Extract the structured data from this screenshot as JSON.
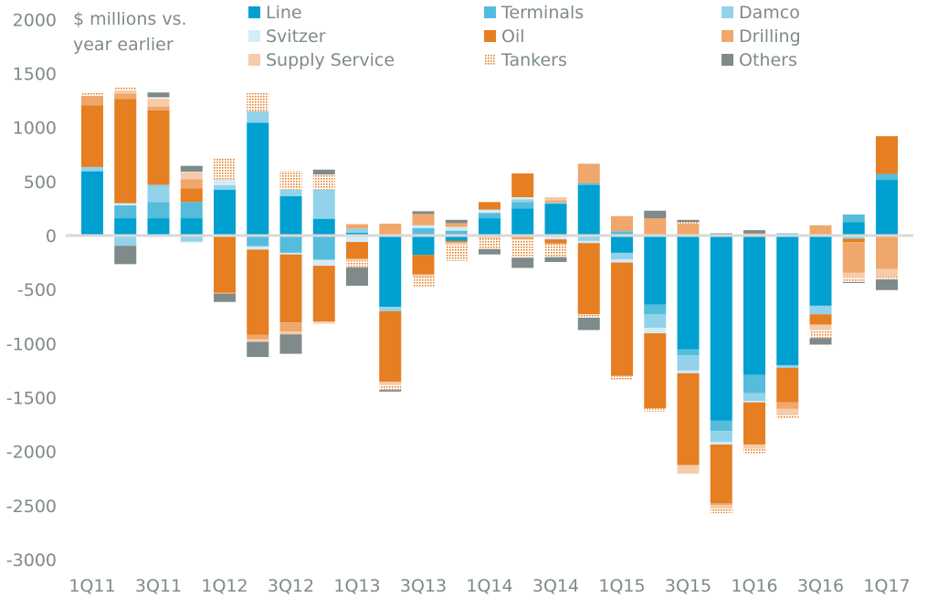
{
  "chart_data": {
    "type": "bar",
    "stacked": true,
    "title": "",
    "ylabel": "$ millions vs. year earlier",
    "xlabel": "",
    "ylim": [
      -3000,
      2000
    ],
    "yticks": [
      2000,
      1500,
      1000,
      500,
      0,
      -500,
      -1000,
      -1500,
      -2000,
      -2500,
      -3000
    ],
    "grid": false,
    "legend_position": "top",
    "categories": [
      "1Q11",
      "2Q11",
      "3Q11",
      "4Q11",
      "1Q12",
      "2Q12",
      "3Q12",
      "4Q12",
      "1Q13",
      "2Q13",
      "3Q13",
      "4Q13",
      "1Q14",
      "2Q14",
      "3Q14",
      "4Q14",
      "1Q15",
      "2Q15",
      "3Q15",
      "4Q15",
      "1Q16",
      "2Q16",
      "3Q16",
      "4Q16",
      "1Q17"
    ],
    "xtick_labels": [
      "1Q11",
      "3Q11",
      "1Q12",
      "3Q12",
      "1Q13",
      "3Q13",
      "1Q14",
      "3Q14",
      "1Q15",
      "3Q15",
      "1Q16",
      "3Q16",
      "1Q17"
    ],
    "series": [
      {
        "name": "Line",
        "color": "#00a0d0",
        "pattern": "solid",
        "values": [
          595,
          160,
          160,
          160,
          425,
          1045,
          365,
          155,
          25,
          -660,
          -180,
          -50,
          160,
          250,
          295,
          465,
          -160,
          -640,
          -1055,
          -1715,
          -1290,
          -1200,
          -650,
          125,
          515
        ]
      },
      {
        "name": "Terminals",
        "color": "#56bcdc",
        "pattern": "solid",
        "values": [
          0,
          120,
          150,
          150,
          0,
          -100,
          -160,
          -225,
          0,
          10,
          70,
          45,
          50,
          60,
          0,
          20,
          40,
          -90,
          -55,
          -95,
          -170,
          20,
          0,
          70,
          55
        ]
      },
      {
        "name": "Damco",
        "color": "#92d2ea",
        "pattern": "solid",
        "values": [
          40,
          -95,
          160,
          -55,
          40,
          105,
          60,
          270,
          40,
          -40,
          0,
          0,
          0,
          25,
          10,
          -50,
          -60,
          -125,
          -140,
          -100,
          -70,
          -25,
          -80,
          -30,
          0
        ]
      },
      {
        "name": "Svitzer",
        "color": "#d4ecf6",
        "pattern": "solid",
        "values": [
          0,
          20,
          -15,
          -10,
          55,
          -30,
          -15,
          -55,
          -60,
          0,
          25,
          35,
          30,
          20,
          -35,
          -20,
          -30,
          -50,
          -25,
          -25,
          -15,
          0,
          0,
          0,
          0
        ]
      },
      {
        "name": "Oil",
        "color": "#e67e22",
        "pattern": "solid",
        "values": [
          570,
          965,
          690,
          125,
          -530,
          -790,
          -630,
          -515,
          -155,
          -655,
          -180,
          -15,
          70,
          220,
          -40,
          -660,
          -1050,
          -695,
          -850,
          -545,
          -390,
          -320,
          -95,
          -30,
          350
        ]
      },
      {
        "name": "Drilling",
        "color": "#f0a76c",
        "pattern": "solid",
        "values": [
          90,
          50,
          35,
          85,
          -10,
          -40,
          -85,
          0,
          40,
          100,
          105,
          35,
          -15,
          -35,
          20,
          180,
          140,
          160,
          110,
          -15,
          20,
          -60,
          95,
          -285,
          -310
        ]
      },
      {
        "name": "Supply Service",
        "color": "#f6cba9",
        "pattern": "solid",
        "values": [
          0,
          30,
          70,
          60,
          0,
          -25,
          -25,
          -20,
          -20,
          -30,
          -20,
          -20,
          -10,
          0,
          30,
          0,
          0,
          0,
          -80,
          -35,
          -40,
          -60,
          -50,
          -50,
          -75
        ]
      },
      {
        "name": "Tankers",
        "color": "#e67e22",
        "pattern": "dotted",
        "values": [
          35,
          25,
          15,
          10,
          190,
          175,
          175,
          140,
          -60,
          -45,
          -95,
          -150,
          -100,
          -170,
          -125,
          -30,
          -40,
          -30,
          15,
          -40,
          -40,
          -25,
          -75,
          -35,
          -20
        ]
      },
      {
        "name": "Others",
        "color": "#7f8a8a",
        "pattern": "solid",
        "values": [
          -10,
          -170,
          45,
          55,
          -75,
          -140,
          -180,
          45,
          -170,
          -15,
          25,
          30,
          -50,
          -95,
          -45,
          -115,
          0,
          70,
          20,
          20,
          30,
          0,
          -60,
          -10,
          -100
        ]
      }
    ]
  }
}
